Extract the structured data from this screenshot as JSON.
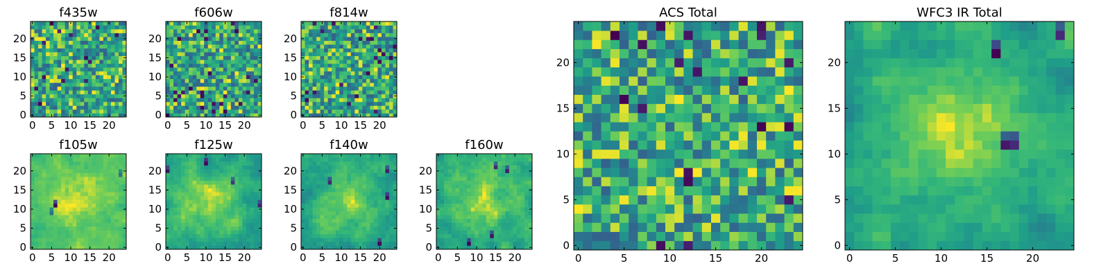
{
  "chart_data": [
    {
      "type": "heatmap",
      "title": "f435w",
      "xlim": [
        0,
        25
      ],
      "ylim": [
        0,
        25
      ],
      "x_ticks": [
        0,
        5,
        10,
        15,
        20
      ],
      "y_ticks": [
        0,
        5,
        10,
        15,
        20
      ],
      "grid_size": 25,
      "pattern": "noise",
      "seed": 11,
      "colormap": "viridis"
    },
    {
      "type": "heatmap",
      "title": "f606w",
      "xlim": [
        0,
        25
      ],
      "ylim": [
        0,
        25
      ],
      "x_ticks": [
        0,
        5,
        10,
        15,
        20
      ],
      "y_ticks": [
        0,
        5,
        10,
        15,
        20
      ],
      "grid_size": 25,
      "pattern": "noise",
      "seed": 23,
      "colormap": "viridis"
    },
    {
      "type": "heatmap",
      "title": "f814w",
      "xlim": [
        0,
        25
      ],
      "ylim": [
        0,
        25
      ],
      "x_ticks": [
        0,
        5,
        10,
        15,
        20
      ],
      "y_ticks": [
        0,
        5,
        10,
        15,
        20
      ],
      "grid_size": 25,
      "pattern": "noise",
      "seed": 37,
      "colormap": "viridis"
    },
    {
      "type": "heatmap",
      "title": "f105w",
      "xlim": [
        0,
        25
      ],
      "ylim": [
        0,
        25
      ],
      "x_ticks": [
        0,
        5,
        10,
        15,
        20
      ],
      "y_ticks": [
        0,
        5,
        10,
        15,
        20
      ],
      "grid_size": 25,
      "pattern": "smooth",
      "seed": 41,
      "colormap": "viridis"
    },
    {
      "type": "heatmap",
      "title": "f125w",
      "xlim": [
        0,
        25
      ],
      "ylim": [
        0,
        25
      ],
      "x_ticks": [
        0,
        5,
        10,
        15,
        20
      ],
      "y_ticks": [
        0,
        5,
        10,
        15,
        20
      ],
      "grid_size": 25,
      "pattern": "smooth",
      "seed": 53,
      "colormap": "viridis"
    },
    {
      "type": "heatmap",
      "title": "f140w",
      "xlim": [
        0,
        25
      ],
      "ylim": [
        0,
        25
      ],
      "x_ticks": [
        0,
        5,
        10,
        15,
        20
      ],
      "y_ticks": [
        0,
        5,
        10,
        15,
        20
      ],
      "grid_size": 25,
      "pattern": "smooth",
      "seed": 67,
      "colormap": "viridis"
    },
    {
      "type": "heatmap",
      "title": "f160w",
      "xlim": [
        0,
        25
      ],
      "ylim": [
        0,
        25
      ],
      "x_ticks": [
        0,
        5,
        10,
        15,
        20
      ],
      "y_ticks": [
        0,
        5,
        10,
        15,
        20
      ],
      "grid_size": 25,
      "pattern": "smooth",
      "seed": 79,
      "colormap": "viridis"
    },
    {
      "type": "heatmap",
      "title": "ACS Total",
      "xlim": [
        0,
        25
      ],
      "ylim": [
        0,
        25
      ],
      "x_ticks": [
        0,
        5,
        10,
        15,
        20
      ],
      "y_ticks": [
        0,
        5,
        10,
        15,
        20
      ],
      "grid_size": 25,
      "pattern": "noise",
      "seed": 97,
      "colormap": "viridis"
    },
    {
      "type": "heatmap",
      "title": "WFC3 IR Total",
      "xlim": [
        0,
        25
      ],
      "ylim": [
        0,
        25
      ],
      "x_ticks": [
        0,
        5,
        10,
        15,
        20
      ],
      "y_ticks": [
        0,
        5,
        10,
        15,
        20
      ],
      "grid_size": 25,
      "pattern": "smooth",
      "seed": 113,
      "colormap": "viridis"
    }
  ],
  "colors": {
    "viridis_dark": "#440154",
    "viridis_blue": "#31688e",
    "viridis_teal": "#21918c",
    "viridis_green": "#5ec962",
    "viridis_yellow": "#fde725"
  }
}
